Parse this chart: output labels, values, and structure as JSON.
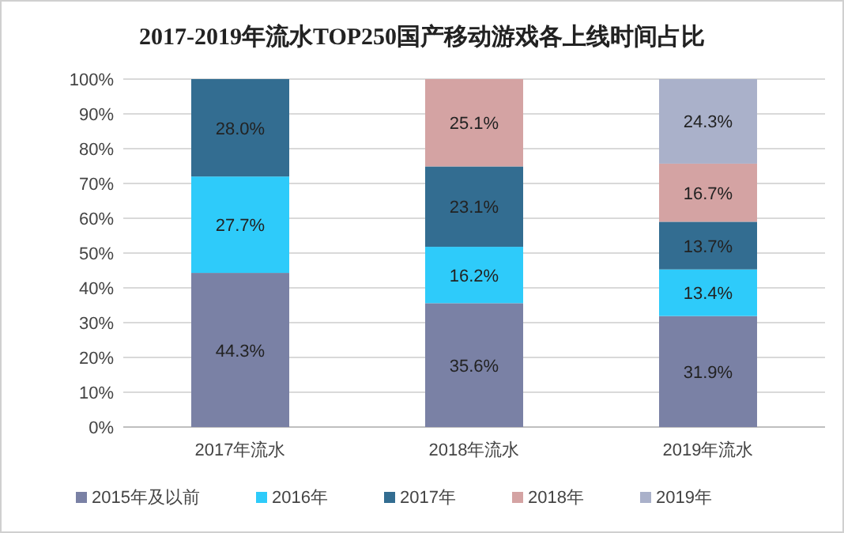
{
  "chart_data": {
    "type": "bar",
    "stacked": true,
    "title": "2017-2019年流水TOP250国产移动游戏各上线时间占比",
    "categories": [
      "2017年流水",
      "2018年流水",
      "2019年流水"
    ],
    "series": [
      {
        "name": "2015年及以前",
        "color": "#7a81a5",
        "values": [
          44.3,
          35.6,
          31.9
        ],
        "value_labels": [
          "44.3%",
          "35.6%",
          "31.9%"
        ]
      },
      {
        "name": "2016年",
        "color": "#2ecbfa",
        "values": [
          27.7,
          16.2,
          13.4
        ],
        "value_labels": [
          "27.7%",
          "16.2%",
          "13.4%"
        ]
      },
      {
        "name": "2017年",
        "color": "#336d91",
        "values": [
          28.0,
          23.1,
          13.7
        ],
        "value_labels": [
          "28.0%",
          "23.1%",
          "13.7%"
        ]
      },
      {
        "name": "2018年",
        "color": "#d4a3a3",
        "values": [
          null,
          25.1,
          16.7
        ],
        "value_labels": [
          null,
          "25.1%",
          "16.7%"
        ]
      },
      {
        "name": "2019年",
        "color": "#aab1ca",
        "values": [
          null,
          null,
          24.3
        ],
        "value_labels": [
          null,
          null,
          "24.3%"
        ]
      }
    ],
    "ylim": [
      0,
      100
    ],
    "yticks": [
      {
        "value": 0,
        "label": "0%"
      },
      {
        "value": 10,
        "label": "10%"
      },
      {
        "value": 20,
        "label": "20%"
      },
      {
        "value": 30,
        "label": "30%"
      },
      {
        "value": 40,
        "label": "40%"
      },
      {
        "value": 50,
        "label": "50%"
      },
      {
        "value": 60,
        "label": "60%"
      },
      {
        "value": 70,
        "label": "70%"
      },
      {
        "value": 80,
        "label": "80%"
      },
      {
        "value": 90,
        "label": "90%"
      },
      {
        "value": 100,
        "label": "100%"
      }
    ],
    "grid": "y",
    "legend": "bottom"
  }
}
